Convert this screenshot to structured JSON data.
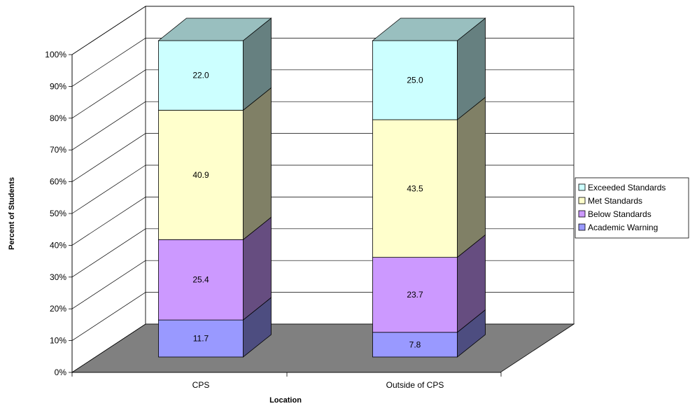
{
  "chart_data": {
    "type": "bar",
    "stacked": true,
    "three_d": true,
    "percent_stacked": true,
    "categories": [
      "CPS",
      "Outside of CPS"
    ],
    "series": [
      {
        "name": "Academic Warning",
        "values": [
          11.7,
          7.8
        ],
        "color": "#9999ff"
      },
      {
        "name": "Below Standards",
        "values": [
          25.4,
          23.7
        ],
        "color": "#cc99ff"
      },
      {
        "name": "Met Standards",
        "values": [
          40.9,
          43.5
        ],
        "color": "#ffffcc"
      },
      {
        "name": "Exceeded Standards",
        "values": [
          22.0,
          25.0
        ],
        "color": "#ccffff"
      }
    ],
    "xlabel": "Location",
    "ylabel": "Percent of Students",
    "ylim": [
      0,
      100
    ],
    "yticks": [
      "0%",
      "10%",
      "20%",
      "30%",
      "40%",
      "50%",
      "60%",
      "70%",
      "80%",
      "90%",
      "100%"
    ],
    "grid": true,
    "legend": "right",
    "floor_color": "#808080"
  }
}
